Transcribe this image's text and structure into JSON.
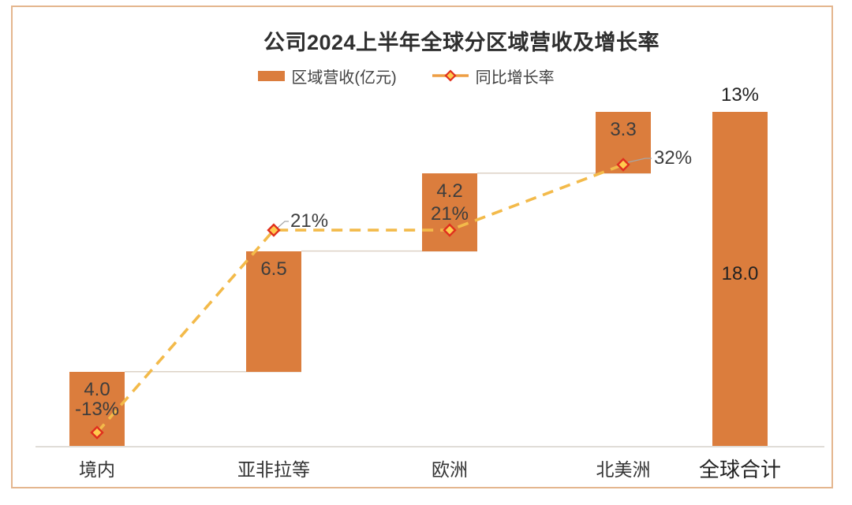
{
  "title": "公司2024上半年全球分区域营收及增长率",
  "legend": {
    "items": [
      {
        "label": "区域营收(亿元)",
        "type": "bar-swatch"
      },
      {
        "label": "同比增长率",
        "type": "line-marker"
      }
    ]
  },
  "colors": {
    "bar": "#DB7D3D",
    "growth_line": "#F3BA4A",
    "legend_line": "#EE9E44",
    "marker_stroke": "#E0301E",
    "marker_fill": "#FFCB4E",
    "connector": "#DDD2C6",
    "axis_line": "#D6D0CA",
    "leader_line": "#A6A6A6",
    "frame_border": "#E4B68E",
    "label_text": "#3D3D3D"
  },
  "chart_data": {
    "type": "bar",
    "subtype": "waterfall-with-growth-line",
    "title": "公司2024上半年全球分区域营收及增长率",
    "categories": [
      "境内",
      "亚非拉等",
      "欧洲",
      "北美洲",
      "全球合计"
    ],
    "series": [
      {
        "name": "区域营收(亿元)",
        "type": "waterfall-bar",
        "values": [
          4.0,
          6.5,
          4.2,
          3.3,
          18.0
        ],
        "value_labels": [
          "4.0",
          "6.5",
          "4.2",
          "3.3",
          "18.0"
        ],
        "total_index": 4,
        "cumulative_ends": [
          4.0,
          10.5,
          14.7,
          18.0,
          18.0
        ]
      },
      {
        "name": "同比增长率",
        "type": "line",
        "values_percent": [
          -13,
          21,
          21,
          32,
          13
        ],
        "value_labels": [
          "-13%",
          "21%",
          "21%",
          "32%",
          "13%"
        ],
        "marker_indices": [
          0,
          1,
          2,
          3
        ],
        "line_style": "dashed",
        "marker": "diamond"
      }
    ],
    "xlabel": "",
    "ylabel": "",
    "value_axis_visible": false,
    "grid": false,
    "legend_position": "top-center",
    "value_axis_range_implied": [
      0,
      18.0
    ]
  }
}
